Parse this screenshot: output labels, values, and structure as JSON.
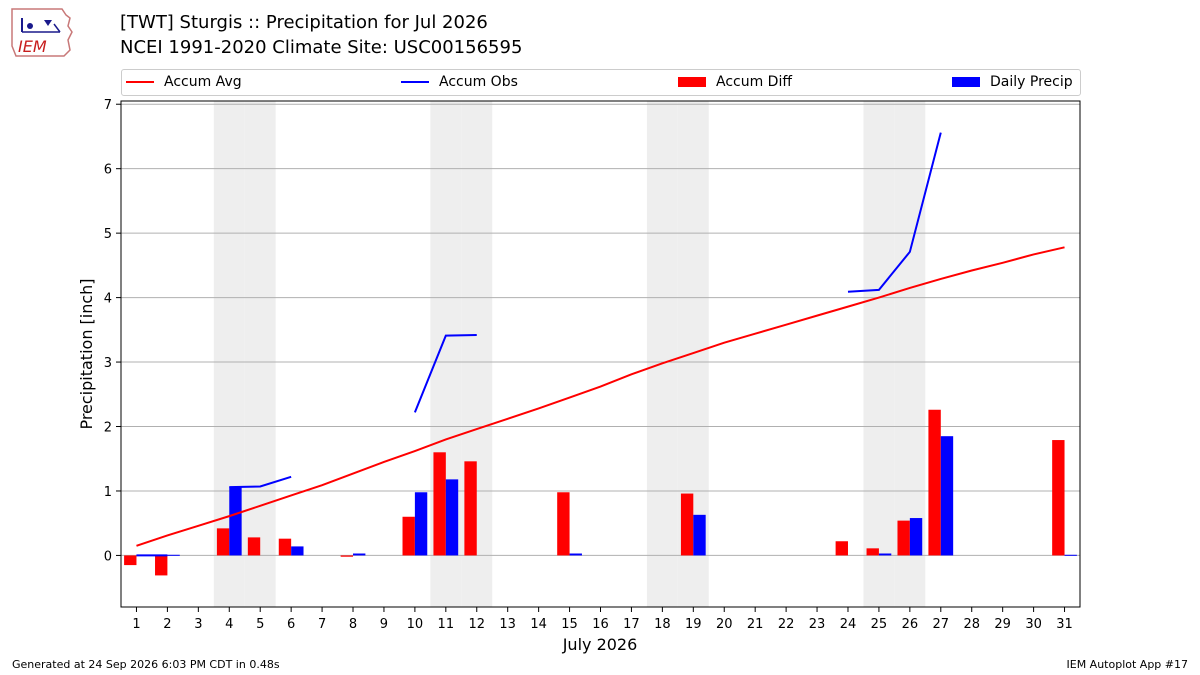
{
  "logo": {
    "text": "IEM"
  },
  "title": {
    "line1": "[TWT] Sturgis :: Precipitation for Jul 2026",
    "line2": "NCEI 1991-2020 Climate Site: USC00156595"
  },
  "legend": [
    {
      "label": "Accum Avg",
      "kind": "line",
      "color": "#ff0000"
    },
    {
      "label": "Accum Obs",
      "kind": "line",
      "color": "#0000ff"
    },
    {
      "label": "Accum Diff",
      "kind": "bar",
      "color": "#ff0000"
    },
    {
      "label": "Daily Precip",
      "kind": "bar",
      "color": "#0000ff"
    }
  ],
  "footer": {
    "left": "Generated at 24 Sep 2026 6:03 PM CDT in 0.48s",
    "right": "IEM Autoplot App #17"
  },
  "chart_data": {
    "type": "bar",
    "xlabel": "July 2026",
    "ylabel": "Precipitation [inch]",
    "x": [
      1,
      2,
      3,
      4,
      5,
      6,
      7,
      8,
      9,
      10,
      11,
      12,
      13,
      14,
      15,
      16,
      17,
      18,
      19,
      20,
      21,
      22,
      23,
      24,
      25,
      26,
      27,
      28,
      29,
      30,
      31
    ],
    "xlim": [
      0.5,
      31.5
    ],
    "ylim": [
      -0.8,
      7.05
    ],
    "yticks": [
      0,
      1,
      2,
      3,
      4,
      5,
      6,
      7
    ],
    "grid": "horizontal",
    "shaded_days": [
      4,
      5,
      11,
      12,
      18,
      19,
      25,
      26
    ],
    "series": [
      {
        "name": "Accum Avg",
        "kind": "line",
        "color": "#ff0000",
        "values": [
          0.15,
          0.31,
          0.46,
          0.61,
          0.77,
          0.93,
          1.09,
          1.27,
          1.45,
          1.62,
          1.8,
          1.96,
          2.12,
          2.28,
          2.45,
          2.62,
          2.81,
          2.98,
          3.14,
          3.3,
          3.44,
          3.58,
          3.72,
          3.86,
          4.0,
          4.15,
          4.29,
          4.42,
          4.54,
          4.67,
          4.78
        ]
      },
      {
        "name": "Accum Obs",
        "kind": "line",
        "color": "#0000ff",
        "values": [
          0.0,
          0.0,
          null,
          1.06,
          1.07,
          1.22,
          null,
          null,
          null,
          2.22,
          3.41,
          3.42,
          null,
          null,
          null,
          null,
          null,
          null,
          null,
          null,
          null,
          null,
          null,
          4.09,
          4.12,
          4.71,
          6.56,
          null,
          null,
          null,
          null
        ]
      },
      {
        "name": "Accum Diff",
        "kind": "bar",
        "color": "#ff0000",
        "values": [
          -0.15,
          -0.31,
          0,
          0.42,
          0.28,
          0.26,
          0,
          -0.02,
          0,
          0.6,
          1.6,
          1.46,
          0,
          0,
          0.98,
          0,
          0,
          0,
          0.96,
          0,
          0,
          0,
          0,
          0.22,
          0.11,
          0.54,
          2.26,
          0,
          0,
          0,
          1.79
        ]
      },
      {
        "name": "Daily Precip",
        "kind": "bar",
        "color": "#0000ff",
        "values": [
          0.01,
          0.01,
          0,
          1.06,
          0,
          0.14,
          0,
          0.03,
          0,
          0.98,
          1.18,
          0,
          0,
          0,
          0.03,
          0,
          0,
          0,
          0.63,
          0,
          0,
          0,
          0,
          0,
          0.03,
          0.58,
          1.85,
          0,
          0,
          0,
          0.01
        ]
      }
    ]
  }
}
